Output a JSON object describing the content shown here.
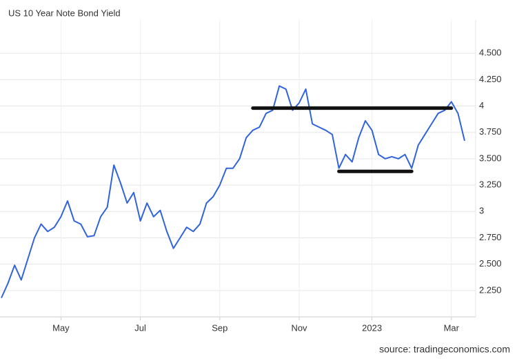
{
  "chart_data": {
    "type": "line",
    "title": "US 10 Year Note Bond Yield",
    "source": "source: tradingeconomics.com",
    "categories": [
      null,
      null,
      null,
      null,
      null,
      null,
      null,
      null,
      null,
      "May",
      null,
      null,
      null,
      null,
      null,
      null,
      null,
      null,
      null,
      null,
      null,
      "Jul",
      null,
      null,
      null,
      null,
      null,
      null,
      null,
      null,
      null,
      null,
      null,
      "Sep",
      null,
      null,
      null,
      null,
      null,
      null,
      null,
      null,
      null,
      null,
      null,
      "Nov",
      null,
      null,
      null,
      null,
      null,
      null,
      null,
      null,
      null,
      null,
      "2023",
      null,
      null,
      null,
      null,
      null,
      null,
      null,
      null,
      null,
      null,
      null,
      "Mar",
      null,
      null
    ],
    "series": [
      {
        "name": "US 10 Year Note Bond Yield",
        "color": "#2f63dc",
        "values": [
          2.18,
          2.32,
          2.49,
          2.35,
          2.55,
          2.75,
          2.88,
          2.81,
          2.85,
          2.95,
          3.1,
          2.91,
          2.88,
          2.76,
          2.77,
          2.95,
          3.04,
          3.44,
          3.27,
          3.08,
          3.18,
          2.91,
          3.08,
          2.95,
          3.01,
          2.81,
          2.65,
          2.75,
          2.85,
          2.81,
          2.88,
          3.08,
          3.14,
          3.25,
          3.41,
          3.41,
          3.5,
          3.7,
          3.77,
          3.8,
          3.93,
          3.96,
          4.19,
          4.16,
          3.96,
          4.03,
          4.16,
          3.83,
          3.8,
          3.77,
          3.73,
          3.41,
          3.54,
          3.47,
          3.7,
          3.86,
          3.77,
          3.54,
          3.5,
          3.52,
          3.5,
          3.54,
          3.41,
          3.63,
          3.73,
          3.83,
          3.93,
          3.96,
          4.04,
          3.93,
          3.67
        ]
      }
    ],
    "levels": [
      {
        "value": 3.98,
        "start": 38,
        "end": 68
      },
      {
        "value": 3.38,
        "start": 51,
        "end": 62
      }
    ],
    "levels_color": "#111111",
    "ylim": [
      2,
      4.75
    ],
    "yticks": [
      {
        "value": 2.25,
        "label": "2.250"
      },
      {
        "value": 2.5,
        "label": "2.500"
      },
      {
        "value": 2.75,
        "label": "2.750"
      },
      3,
      {
        "value": 3.25,
        "label": "3.250"
      },
      {
        "value": 3.5,
        "label": "3.500"
      },
      {
        "value": 3.75,
        "label": "3.750"
      },
      4,
      {
        "value": 4.25,
        "label": "4.250"
      },
      {
        "value": 4.5,
        "label": "4.500"
      }
    ],
    "grid": true
  }
}
